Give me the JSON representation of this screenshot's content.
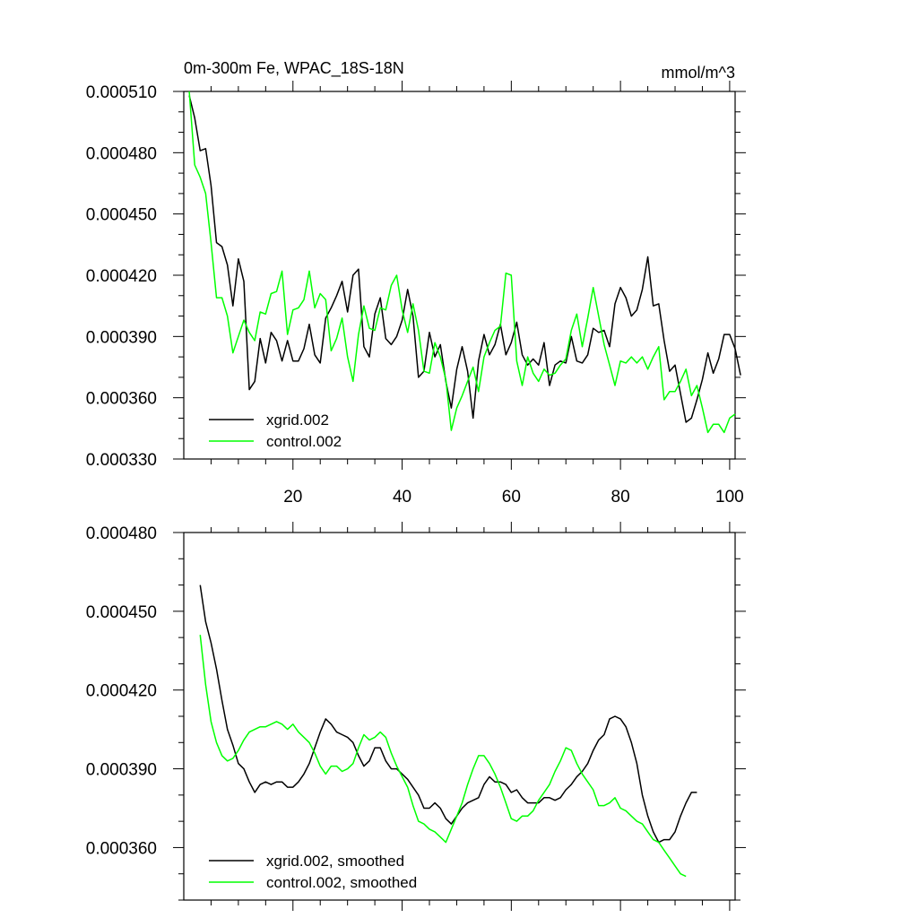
{
  "chart_data": [
    {
      "type": "line",
      "title": "0m-300m Fe, WPAC_18S-18N",
      "units": "mmol/m^3",
      "xlim": [
        0,
        101
      ],
      "ylim": [
        0.00033,
        0.00051
      ],
      "yticks": [
        "0.000510",
        "0.000480",
        "0.000450",
        "0.000420",
        "0.000390",
        "0.000360",
        "0.000330"
      ],
      "xticks": [
        "20",
        "40",
        "60",
        "80",
        "100"
      ],
      "legend_position": "bottom-left",
      "series": [
        {
          "name": "xgrid.002",
          "color": "#000000",
          "x_start": 1,
          "values": [
            0.000508,
            0.000497,
            0.000481,
            0.000482,
            0.000464,
            0.000436,
            0.000434,
            0.000425,
            0.000405,
            0.000428,
            0.000417,
            0.000364,
            0.000368,
            0.000389,
            0.000377,
            0.000392,
            0.000388,
            0.000378,
            0.000388,
            0.000378,
            0.000378,
            0.000384,
            0.000396,
            0.000381,
            0.000377,
            0.000399,
            0.000404,
            0.00041,
            0.000417,
            0.000402,
            0.00042,
            0.000423,
            0.000385,
            0.00038,
            0.000401,
            0.000409,
            0.000389,
            0.000386,
            0.00039,
            0.000398,
            0.000413,
            0.0004,
            0.00037,
            0.000373,
            0.000392,
            0.00038,
            0.000386,
            0.000368,
            0.000355,
            0.000374,
            0.000385,
            0.000373,
            0.00035,
            0.000378,
            0.000391,
            0.000381,
            0.000386,
            0.000396,
            0.000381,
            0.000387,
            0.000397,
            0.000381,
            0.000376,
            0.000379,
            0.000376,
            0.000387,
            0.000366,
            0.000376,
            0.000378,
            0.000377,
            0.00039,
            0.000378,
            0.000377,
            0.000381,
            0.000394,
            0.000392,
            0.000393,
            0.000385,
            0.000406,
            0.000414,
            0.000409,
            0.0004,
            0.000403,
            0.000413,
            0.000429,
            0.000405,
            0.000406,
            0.000388,
            0.000373,
            0.000376,
            0.000362,
            0.000348,
            0.00035,
            0.000359,
            0.000369,
            0.000382,
            0.000372,
            0.000379,
            0.000391,
            0.000391,
            0.000384,
            0.000371
          ]
        },
        {
          "name": "control.002",
          "color": "#00ff00",
          "x_start": 1,
          "values": [
            0.00051,
            0.000474,
            0.000468,
            0.00046,
            0.000436,
            0.000409,
            0.000409,
            0.0004,
            0.000382,
            0.00039,
            0.000398,
            0.000392,
            0.000388,
            0.000402,
            0.000401,
            0.000411,
            0.000412,
            0.000422,
            0.000391,
            0.000403,
            0.000404,
            0.000408,
            0.000422,
            0.000404,
            0.000411,
            0.000408,
            0.000383,
            0.000389,
            0.000399,
            0.00038,
            0.000368,
            0.000391,
            0.000405,
            0.000394,
            0.000393,
            0.000404,
            0.000403,
            0.000415,
            0.00042,
            0.000403,
            0.000392,
            0.000406,
            0.000393,
            0.000373,
            0.000372,
            0.000387,
            0.00038,
            0.000369,
            0.000344,
            0.000355,
            0.000361,
            0.000368,
            0.000375,
            0.000363,
            0.00038,
            0.000387,
            0.000393,
            0.000395,
            0.000421,
            0.00042,
            0.000378,
            0.000366,
            0.00038,
            0.000372,
            0.000368,
            0.000374,
            0.000371,
            0.000372,
            0.000376,
            0.000379,
            0.000393,
            0.000401,
            0.000385,
            0.000399,
            0.000414,
            0.0004,
            0.000386,
            0.000376,
            0.000366,
            0.000378,
            0.000377,
            0.00038,
            0.000377,
            0.00038,
            0.000374,
            0.00038,
            0.000385,
            0.000359,
            0.000363,
            0.000363,
            0.000368,
            0.000374,
            0.000361,
            0.000366,
            0.000355,
            0.000343,
            0.000347,
            0.000347,
            0.000343,
            0.00035,
            0.000352
          ]
        }
      ]
    },
    {
      "type": "line",
      "title": "",
      "xlim": [
        0,
        101
      ],
      "ylim": [
        0.00034,
        0.00048
      ],
      "yticks": [
        "0.000480",
        "0.000450",
        "0.000420",
        "0.000390",
        "0.000360"
      ],
      "legend_position": "bottom-left",
      "series": [
        {
          "name": "xgrid.002, smoothed",
          "color": "#000000",
          "x_start": 3,
          "values": [
            0.00046,
            0.000446,
            0.000438,
            0.000428,
            0.000416,
            0.000405,
            0.000399,
            0.000392,
            0.00039,
            0.000385,
            0.000381,
            0.000384,
            0.000385,
            0.000384,
            0.000385,
            0.000385,
            0.000383,
            0.000383,
            0.000385,
            0.000388,
            0.000392,
            0.000398,
            0.000404,
            0.000409,
            0.000407,
            0.000404,
            0.000403,
            0.000402,
            0.0004,
            0.000395,
            0.000391,
            0.000393,
            0.000398,
            0.000398,
            0.000393,
            0.00039,
            0.00039,
            0.000388,
            0.000386,
            0.000383,
            0.00038,
            0.000375,
            0.000375,
            0.000377,
            0.000375,
            0.000371,
            0.000369,
            0.000372,
            0.000375,
            0.000377,
            0.000378,
            0.000379,
            0.000384,
            0.000387,
            0.000385,
            0.000385,
            0.000384,
            0.000381,
            0.000382,
            0.000379,
            0.000377,
            0.000377,
            0.000377,
            0.000379,
            0.000379,
            0.000378,
            0.000379,
            0.000382,
            0.000384,
            0.000387,
            0.000389,
            0.000392,
            0.000397,
            0.000401,
            0.000403,
            0.000409,
            0.00041,
            0.000409,
            0.000406,
            0.0004,
            0.000392,
            0.00038,
            0.000372,
            0.000366,
            0.000362,
            0.000363,
            0.000363,
            0.000366,
            0.000372,
            0.000377,
            0.000381,
            0.000381
          ]
        },
        {
          "name": "control.002, smoothed",
          "color": "#00ff00",
          "x_start": 3,
          "values": [
            0.000441,
            0.000422,
            0.000408,
            0.0004,
            0.000395,
            0.000393,
            0.000394,
            0.000397,
            0.000401,
            0.000404,
            0.000405,
            0.000406,
            0.000406,
            0.000407,
            0.000408,
            0.000407,
            0.000405,
            0.000407,
            0.000404,
            0.000402,
            0.0004,
            0.000396,
            0.000391,
            0.000388,
            0.000391,
            0.000391,
            0.000389,
            0.00039,
            0.000392,
            0.000398,
            0.000403,
            0.000401,
            0.000402,
            0.000404,
            0.000402,
            0.000396,
            0.000391,
            0.000387,
            0.000383,
            0.000376,
            0.00037,
            0.000369,
            0.000367,
            0.000366,
            0.000364,
            0.000362,
            0.000367,
            0.000372,
            0.000377,
            0.000384,
            0.00039,
            0.000395,
            0.000395,
            0.000392,
            0.000388,
            0.000383,
            0.000377,
            0.000371,
            0.00037,
            0.000372,
            0.000372,
            0.000374,
            0.000378,
            0.000381,
            0.000384,
            0.000389,
            0.000393,
            0.000398,
            0.000397,
            0.000392,
            0.000388,
            0.000385,
            0.000382,
            0.000376,
            0.000376,
            0.000377,
            0.000379,
            0.000375,
            0.000374,
            0.000372,
            0.00037,
            0.000369,
            0.000366,
            0.000363,
            0.000362,
            0.000359,
            0.000356,
            0.000353,
            0.00035,
            0.000349
          ]
        }
      ]
    }
  ]
}
